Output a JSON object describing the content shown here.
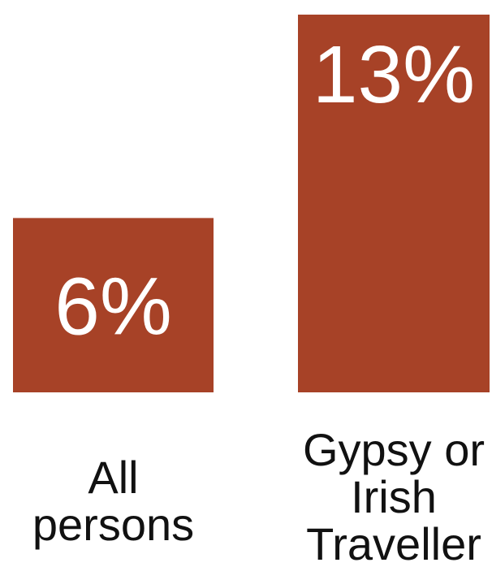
{
  "chart_data": {
    "type": "bar",
    "categories": [
      [
        "All",
        "persons"
      ],
      [
        "Gypsy or",
        "Irish",
        "Traveller"
      ]
    ],
    "values": [
      6,
      13
    ],
    "value_labels": [
      "6%",
      "13%"
    ],
    "ylim": [
      0,
      13
    ],
    "grid": false,
    "bar_color": "#a74227",
    "title": "",
    "xlabel": "",
    "ylabel": ""
  }
}
